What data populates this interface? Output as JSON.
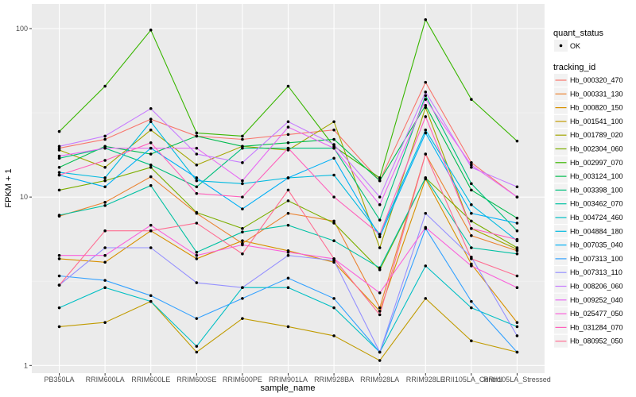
{
  "chart_data": {
    "type": "line",
    "title": "",
    "xlabel": "sample_name",
    "ylabel": "FPKM + 1",
    "yscale": "log10",
    "ylim": [
      0.9,
      140
    ],
    "y_ticks": [
      1,
      10,
      100
    ],
    "y_tick_labels": [
      "1",
      "10",
      "100"
    ],
    "grid": true,
    "legend_position": "right",
    "categories": [
      "PB350LA",
      "RRIM600LA",
      "RRIM600LE",
      "RRIM600SE",
      "RRIM600PE",
      "RRIM901LA",
      "RRIM928BA",
      "RRIM928LA",
      "RRIM928LE",
      "RRII105LA_Control",
      "RRII105LA_Stressed"
    ],
    "shape_legend": {
      "title": "quant_status",
      "entries": [
        "OK"
      ]
    },
    "color_legend_title": "tracking_id",
    "series": [
      {
        "name": "Hb_000320_470",
        "color": "#F8766D",
        "values": [
          19.5,
          22.0,
          29.0,
          23.0,
          22.0,
          23.5,
          25.0,
          12.5,
          48.0,
          16.0,
          10.0
        ]
      },
      {
        "name": "Hb_000331_130",
        "color": "#EA8331",
        "values": [
          7.7,
          9.3,
          13.2,
          8.0,
          5.3,
          8.0,
          7.2,
          2.2,
          18.0,
          5.9,
          4.8
        ]
      },
      {
        "name": "Hb_000820_150",
        "color": "#D89000",
        "values": [
          4.3,
          4.1,
          6.3,
          4.3,
          5.5,
          4.8,
          4.1,
          2.1,
          12.8,
          4.0,
          1.8
        ]
      },
      {
        "name": "Hb_001541_100",
        "color": "#C09B00",
        "values": [
          1.7,
          1.8,
          2.4,
          1.2,
          1.9,
          1.7,
          1.5,
          1.07,
          2.5,
          1.4,
          1.2
        ]
      },
      {
        "name": "Hb_001789_020",
        "color": "#A3A500",
        "values": [
          19.0,
          15.0,
          25.0,
          15.5,
          20.0,
          19.0,
          28.0,
          5.0,
          34.0,
          6.5,
          4.9
        ]
      },
      {
        "name": "Hb_002304_060",
        "color": "#7CAE00",
        "values": [
          11.0,
          12.5,
          15.0,
          8.1,
          6.5,
          9.5,
          7.0,
          3.7,
          13.0,
          7.2,
          5.0
        ]
      },
      {
        "name": "Hb_002997_070",
        "color": "#39B600",
        "values": [
          24.5,
          45.5,
          98.0,
          24.0,
          23.0,
          45.5,
          20.0,
          13.0,
          113.0,
          38.0,
          21.5
        ]
      },
      {
        "name": "Hb_003124_100",
        "color": "#00BB4E",
        "values": [
          15.0,
          20.0,
          18.0,
          23.0,
          20.0,
          21.0,
          22.0,
          12.5,
          35.0,
          11.0,
          7.5
        ]
      },
      {
        "name": "Hb_003398_100",
        "color": "#00BF7D",
        "values": [
          17.0,
          19.5,
          15.5,
          11.5,
          19.5,
          19.5,
          19.5,
          7.3,
          40.0,
          12.0,
          6.3
        ]
      },
      {
        "name": "Hb_003462_070",
        "color": "#00C1A3",
        "values": [
          7.8,
          8.9,
          11.7,
          4.7,
          6.2,
          6.8,
          5.5,
          3.8,
          13.0,
          5.0,
          4.6
        ]
      },
      {
        "name": "Hb_004724_460",
        "color": "#00BFC4",
        "values": [
          2.2,
          2.9,
          2.4,
          1.3,
          2.9,
          2.9,
          2.2,
          1.2,
          3.9,
          2.2,
          1.7
        ]
      },
      {
        "name": "Hb_004884_180",
        "color": "#00BAE0",
        "values": [
          14.0,
          13.0,
          28.0,
          12.5,
          12.0,
          13.0,
          13.5,
          6.0,
          25.0,
          9.0,
          5.5
        ]
      },
      {
        "name": "Hb_007035_040",
        "color": "#00B0F6",
        "values": [
          13.5,
          11.5,
          19.5,
          13.0,
          8.5,
          13.0,
          17.0,
          5.8,
          24.0,
          8.0,
          7.0
        ]
      },
      {
        "name": "Hb_007313_100",
        "color": "#35A2FF",
        "values": [
          3.4,
          3.2,
          2.6,
          1.9,
          2.5,
          3.3,
          2.5,
          1.2,
          6.5,
          2.4,
          1.2
        ]
      },
      {
        "name": "Hb_007313_110",
        "color": "#9590FF",
        "values": [
          3.0,
          5.0,
          5.0,
          3.1,
          2.9,
          4.5,
          4.2,
          1.2,
          8.0,
          4.4,
          1.5
        ]
      },
      {
        "name": "Hb_008206_060",
        "color": "#C77CFF",
        "values": [
          20.0,
          23.0,
          33.5,
          18.0,
          16.0,
          28.0,
          20.5,
          10.0,
          42.0,
          15.0,
          11.5
        ]
      },
      {
        "name": "Hb_009252_040",
        "color": "#E76BF3",
        "values": [
          17.5,
          19.5,
          19.5,
          19.5,
          12.5,
          26.0,
          19.5,
          9.0,
          38.0,
          15.5,
          10.0
        ]
      },
      {
        "name": "Hb_025477_050",
        "color": "#FA62DB",
        "values": [
          4.5,
          4.5,
          6.8,
          4.5,
          5.2,
          4.7,
          4.3,
          2.7,
          6.6,
          3.9,
          2.9
        ]
      },
      {
        "name": "Hb_031284_070",
        "color": "#FF62BC",
        "values": [
          13.5,
          16.5,
          21.0,
          10.5,
          10.0,
          19.5,
          10.0,
          6.0,
          30.0,
          6.5,
          5.6
        ]
      },
      {
        "name": "Hb_080952_050",
        "color": "#FF6C91",
        "values": [
          3.0,
          6.3,
          6.3,
          7.0,
          4.6,
          11.0,
          4.3,
          2.0,
          18.0,
          4.3,
          3.4
        ]
      }
    ]
  }
}
